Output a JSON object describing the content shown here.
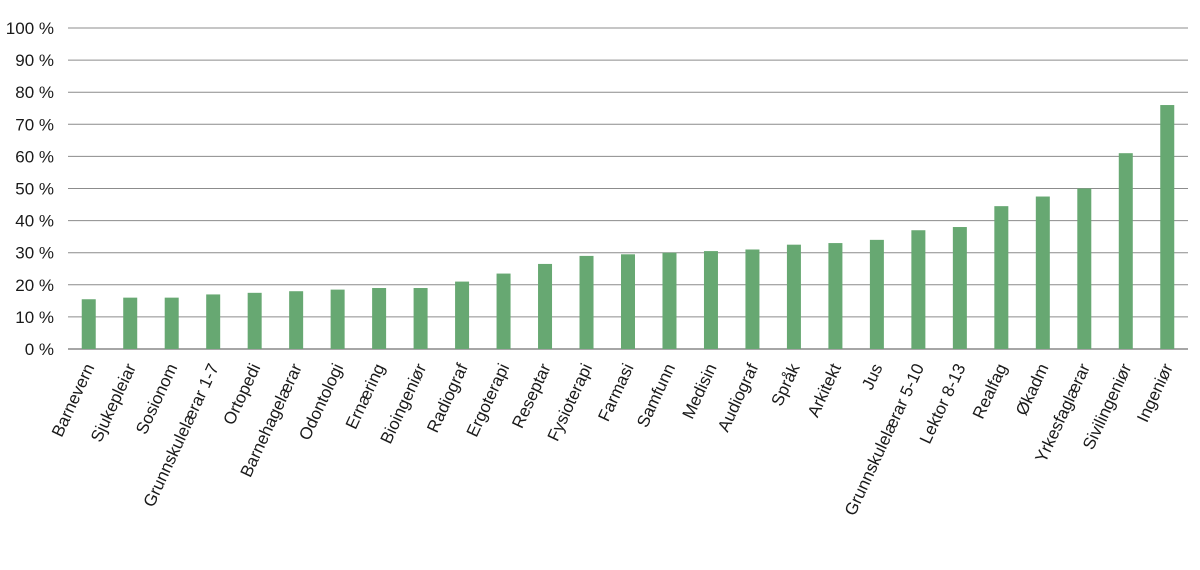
{
  "chart_data": {
    "type": "bar",
    "title": "",
    "xlabel": "",
    "ylabel": "",
    "ylim": [
      0,
      100
    ],
    "yticks": [
      0,
      10,
      20,
      30,
      40,
      50,
      60,
      70,
      80,
      90,
      100
    ],
    "ytick_labels": [
      "0 %",
      "10 %",
      "20 %",
      "30 %",
      "40 %",
      "50 %",
      "60 %",
      "70 %",
      "80 %",
      "90 %",
      "100 %"
    ],
    "grid": true,
    "bar_color": "#67a872",
    "categories": [
      "Barnevern",
      "Sjukepleiar",
      "Sosionom",
      "Grunnskulelærar 1-7",
      "Ortopedi",
      "Barnehagelærar",
      "Odontologi",
      "Ernæring",
      "Bioingeniør",
      "Radiograf",
      "Ergoterapi",
      "Reseptar",
      "Fysioterapi",
      "Farmasi",
      "Samfunn",
      "Medisin",
      "Audiograf",
      "Språk",
      "Arkitekt",
      "Jus",
      "Grunnskulelærar 5-10",
      "Lektor 8-13",
      "Realfag",
      "Økadm",
      "Yrkesfaglærar",
      "Sivilingeniør",
      "Ingeniør"
    ],
    "values": [
      15.5,
      16,
      16,
      17,
      17.5,
      18,
      18.5,
      19,
      19,
      21,
      23.5,
      26.5,
      29,
      29.5,
      30,
      30.5,
      31,
      32.5,
      33,
      34,
      37,
      38,
      44.5,
      47.5,
      50,
      61,
      76
    ]
  }
}
